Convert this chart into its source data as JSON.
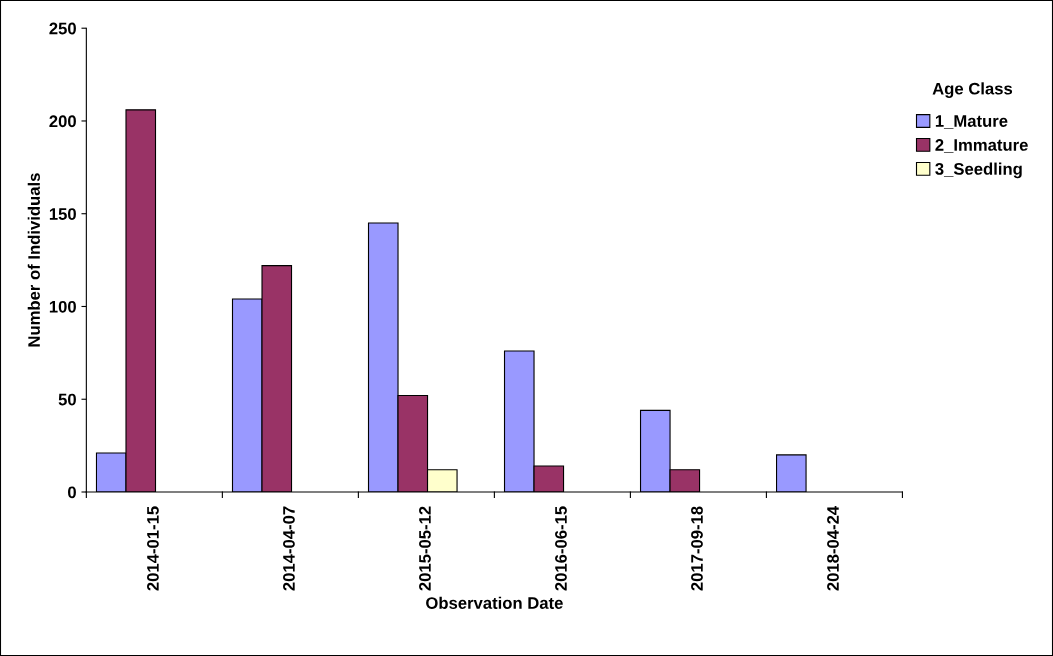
{
  "chart_data": {
    "type": "bar",
    "xlabel": "Observation Date",
    "ylabel": "Number of Individuals",
    "legend_title": "Age Class",
    "categories": [
      "2014-01-15",
      "2014-04-07",
      "2015-05-12",
      "2016-06-15",
      "2017-09-18",
      "2018-04-24"
    ],
    "series": [
      {
        "name": "1_Mature",
        "color": "#9999ff",
        "values": [
          21,
          104,
          145,
          76,
          44,
          20
        ]
      },
      {
        "name": "2_Immature",
        "color": "#993366",
        "values": [
          206,
          122,
          52,
          14,
          12,
          null
        ]
      },
      {
        "name": "3_Seedling",
        "color": "#ffffcc",
        "values": [
          null,
          null,
          12,
          null,
          null,
          null
        ]
      }
    ],
    "ylim": [
      0,
      250
    ],
    "yticks": [
      0,
      50,
      100,
      150,
      200,
      250
    ],
    "grid": false,
    "legend": "right"
  }
}
